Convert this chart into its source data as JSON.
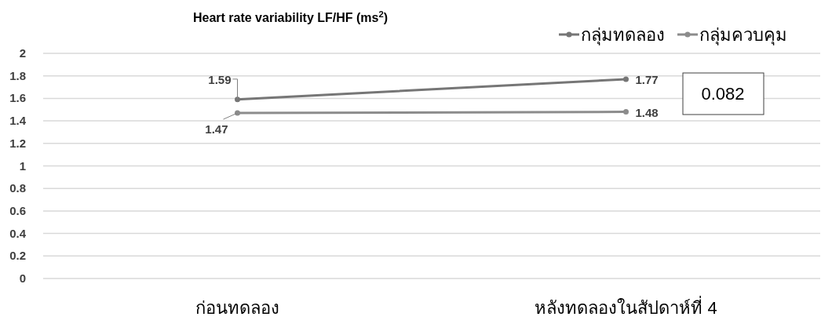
{
  "chart_data": {
    "type": "line",
    "title": "Heart rate variability LF/HF (ms$^{2}$)",
    "categories": [
      "ก่อนทดลอง",
      "หลังทดลองในสัปดาห์ที่ 4"
    ],
    "series": [
      {
        "name": "กลุ่มทดลอง",
        "color": "#767676",
        "values": [
          1.59,
          1.77
        ]
      },
      {
        "name": "กลุ่มควบคุม",
        "color": "#8c8c8c",
        "values": [
          1.47,
          1.48
        ]
      }
    ],
    "ylim": [
      0,
      2
    ],
    "yticks": [
      0,
      0.2,
      0.4,
      0.6,
      0.8,
      1,
      1.2,
      1.4,
      1.6,
      1.8,
      2
    ],
    "grid": "y",
    "legend": "top right",
    "marker": "circle",
    "line_style": "solid",
    "data_labels": true,
    "annotations": [
      "0.082"
    ]
  }
}
